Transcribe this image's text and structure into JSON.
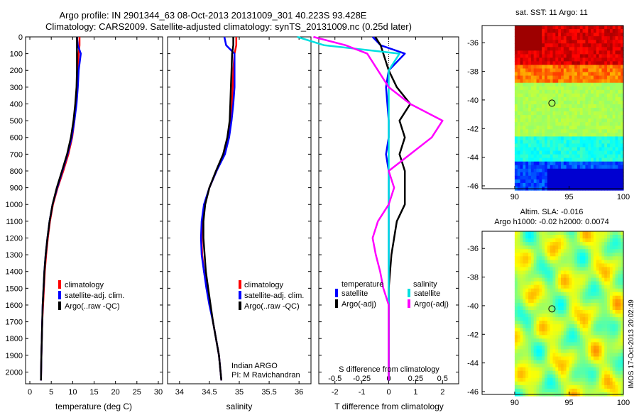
{
  "title_line1": "Argo profile: IN 2901344_63 08-Oct-2013 20131009_301 40.223S 93.428E",
  "title_line2": "Climatology: CARS2009. Satellite-adjusted climatology: synTS_20131009.nc (0.25d later)",
  "side_stamp": "IMOS 17-Oct-2013 20:02:49",
  "colors": {
    "climatology": "#ff0000",
    "satellite": "#0000ff",
    "argo": "#000000",
    "satellite_s": "#00e0e0",
    "argo_s": "#ff00ff"
  },
  "chart_data": [
    {
      "type": "line",
      "xlabel": "temperature (deg C)",
      "xlim": [
        -1,
        31
      ],
      "xticks": [
        0,
        5,
        10,
        15,
        20,
        25,
        30
      ],
      "ylim": [
        2070,
        0
      ],
      "yticks": [
        0,
        100,
        200,
        300,
        400,
        500,
        600,
        700,
        800,
        900,
        1000,
        1100,
        1200,
        1300,
        1400,
        1500,
        1600,
        1700,
        1800,
        1900,
        2000
      ],
      "legend": {
        "placement": "lower-left",
        "entries": [
          "climatology",
          "satellite-adj. clim.",
          "Argo(..raw -QC)"
        ]
      },
      "series": [
        {
          "name": "climatology",
          "color_key": "climatology",
          "x": [
            11.6,
            11.6,
            11.4,
            11.1,
            11.0,
            10.7,
            10.4,
            9.9,
            9.0,
            7.8,
            6.5,
            5.4,
            4.7,
            4.2,
            3.8,
            3.5,
            3.3,
            3.1,
            2.9,
            2.8,
            2.7,
            2.6
          ],
          "y": [
            0,
            50,
            100,
            200,
            300,
            400,
            500,
            600,
            700,
            800,
            900,
            1000,
            1100,
            1200,
            1300,
            1400,
            1500,
            1600,
            1700,
            1800,
            1900,
            2050
          ]
        },
        {
          "name": "satellite-adj. clim.",
          "color_key": "satellite",
          "x": [
            11.0,
            11.2,
            11.9,
            11.4,
            11.2,
            10.9,
            10.4,
            9.8,
            8.8,
            7.6,
            6.4,
            5.3,
            4.6,
            4.1,
            3.7,
            3.4,
            3.2,
            3.0,
            2.9,
            2.8,
            2.7,
            2.6
          ],
          "y": [
            0,
            50,
            100,
            200,
            300,
            400,
            500,
            600,
            700,
            800,
            900,
            1000,
            1100,
            1200,
            1300,
            1400,
            1500,
            1600,
            1700,
            1800,
            1900,
            2050
          ]
        },
        {
          "name": "Argo(..raw -QC)",
          "color_key": "argo",
          "x": [
            11.0,
            11.0,
            11.0,
            11.0,
            10.9,
            10.6,
            10.2,
            9.6,
            8.7,
            7.5,
            6.3,
            5.3,
            4.6,
            4.1,
            3.7,
            3.4,
            3.2,
            3.0,
            2.9,
            2.8,
            2.7,
            2.6
          ],
          "y": [
            0,
            50,
            100,
            200,
            300,
            400,
            500,
            600,
            700,
            800,
            900,
            1000,
            1100,
            1200,
            1300,
            1400,
            1500,
            1600,
            1700,
            1800,
            1900,
            2050
          ]
        }
      ]
    },
    {
      "type": "line",
      "xlabel": "salinity",
      "xlim": [
        33.8,
        36.2
      ],
      "xticks": [
        34,
        34.5,
        35,
        35.5,
        36
      ],
      "ylim": [
        2070,
        0
      ],
      "legend": {
        "placement": "lower-right",
        "entries": [
          "climatology",
          "satellite-adj. clim.",
          "Argo(..raw -QC)"
        ]
      },
      "annotation": [
        "Indian ARGO",
        "PI: M Ravichandran"
      ],
      "series": [
        {
          "name": "climatology",
          "color_key": "climatology",
          "x": [
            34.95,
            34.95,
            34.92,
            34.9,
            34.89,
            34.88,
            34.86,
            34.82,
            34.74,
            34.62,
            34.5,
            34.42,
            34.38,
            34.37,
            34.38,
            34.41,
            34.46,
            34.51,
            34.56,
            34.61,
            34.66,
            34.7
          ],
          "y": [
            0,
            50,
            100,
            200,
            300,
            400,
            500,
            600,
            700,
            800,
            900,
            1000,
            1100,
            1200,
            1300,
            1400,
            1500,
            1600,
            1700,
            1800,
            1900,
            2050
          ]
        },
        {
          "name": "satellite-adj. clim.",
          "color_key": "satellite",
          "x": [
            34.75,
            34.78,
            34.92,
            34.92,
            34.92,
            34.9,
            34.87,
            34.83,
            34.76,
            34.62,
            34.5,
            34.41,
            34.37,
            34.36,
            34.37,
            34.41,
            34.45,
            34.5,
            34.56,
            34.61,
            34.66,
            34.7
          ],
          "y": [
            0,
            50,
            100,
            200,
            300,
            400,
            500,
            600,
            700,
            800,
            900,
            1000,
            1100,
            1200,
            1300,
            1400,
            1500,
            1600,
            1700,
            1800,
            1900,
            2050
          ]
        },
        {
          "name": "Argo(..raw -QC)",
          "color_key": "argo",
          "x": [
            34.9,
            34.9,
            34.88,
            34.87,
            34.86,
            34.85,
            34.84,
            34.8,
            34.73,
            34.61,
            34.5,
            34.43,
            34.4,
            34.4,
            34.42,
            34.44,
            34.48,
            34.52,
            34.56,
            34.61,
            34.66,
            34.7
          ],
          "y": [
            0,
            50,
            100,
            200,
            300,
            400,
            500,
            600,
            700,
            800,
            900,
            1000,
            1100,
            1200,
            1300,
            1400,
            1500,
            1600,
            1700,
            1800,
            1900,
            2050
          ]
        }
      ]
    },
    {
      "type": "line",
      "xlabel": "T difference from climatology",
      "xlabel_top": "S difference from climatology",
      "xlim": [
        -2.6,
        2.6
      ],
      "xticks": [
        -2,
        -1,
        0,
        1,
        2
      ],
      "xticks_top": [
        -0.5,
        -0.25,
        0,
        0.25,
        0.5
      ],
      "ylim": [
        2070,
        0
      ],
      "legend_headers": [
        "temperature",
        "salinity"
      ],
      "legend": {
        "placement": "lower-center",
        "entries": [
          "satellite",
          "Argo(-adj)",
          "satellite",
          "Argo(-adj)"
        ]
      },
      "series": [
        {
          "name": "satellite",
          "group": "temperature",
          "color_key": "satellite",
          "x": [
            -0.6,
            -0.3,
            0.6,
            0.0,
            -0.1,
            -0.05,
            0.0,
            0.0,
            -0.1,
            0.0,
            0.0,
            0.0,
            0.0,
            0.0,
            0.0,
            0.0,
            0.0,
            0.0,
            0.0,
            0.0,
            0.0,
            0.0
          ],
          "y": [
            0,
            50,
            100,
            200,
            300,
            400,
            500,
            600,
            700,
            800,
            900,
            1000,
            1100,
            1200,
            1300,
            1400,
            1500,
            1600,
            1700,
            1800,
            1900,
            2050
          ]
        },
        {
          "name": "Argo(-adj)",
          "group": "temperature",
          "color_key": "argo",
          "x": [
            -0.5,
            -0.3,
            -0.2,
            0.0,
            0.3,
            0.8,
            0.4,
            0.6,
            0.4,
            0.6,
            0.6,
            0.6,
            0.3,
            0.2,
            0.1,
            0.05,
            0.0,
            0.0,
            0.0,
            0.0,
            0.0,
            0.0
          ],
          "y": [
            0,
            50,
            100,
            200,
            300,
            400,
            500,
            600,
            700,
            800,
            900,
            1000,
            1100,
            1200,
            1300,
            1400,
            1500,
            1600,
            1700,
            1800,
            1900,
            2050
          ]
        },
        {
          "name": "satellite",
          "group": "salinity",
          "color_key": "satellite_s",
          "x": [
            -0.85,
            -0.6,
            0.1,
            0.0,
            0.0,
            0.0,
            0.0,
            0.0,
            0.0,
            0.0,
            0.0,
            0.0,
            0.0,
            0.0,
            0.0,
            0.0,
            0.0,
            0.0,
            0.0,
            0.0,
            0.0,
            0.0
          ],
          "y": [
            0,
            50,
            100,
            200,
            300,
            400,
            500,
            600,
            700,
            800,
            900,
            1000,
            1100,
            1200,
            1300,
            1400,
            1500,
            1600,
            1700,
            1800,
            1900,
            2050
          ]
        },
        {
          "name": "Argo(-adj)",
          "group": "salinity",
          "color_key": "argo_s",
          "x": [
            -0.7,
            -0.4,
            -0.2,
            -0.1,
            0.0,
            0.2,
            0.5,
            0.4,
            0.2,
            0.0,
            0.05,
            0.0,
            -0.1,
            -0.15,
            -0.12,
            -0.08,
            -0.05,
            0.0,
            0.0,
            0.0,
            0.0,
            0.0
          ],
          "y": [
            0,
            50,
            100,
            200,
            300,
            400,
            500,
            600,
            700,
            800,
            900,
            1000,
            1100,
            1200,
            1300,
            1400,
            1500,
            1600,
            1700,
            1800,
            1900,
            2050
          ]
        }
      ]
    },
    {
      "type": "heatmap",
      "title": "sat. SST: 11  Argo: 11",
      "xlim": [
        87,
        100
      ],
      "xticks": [
        90,
        95,
        100
      ],
      "ylim": [
        -46.2,
        -34.8
      ],
      "yticks": [
        -36,
        -38,
        -40,
        -42,
        -44,
        -46
      ],
      "marker": {
        "lon": 93.43,
        "lat": -40.22
      }
    },
    {
      "type": "heatmap",
      "title_line1": "Altim. SLA: -0.016",
      "title_line2": "Argo h1000: -0.02  h2000: 0.0074",
      "xlim": [
        87,
        100
      ],
      "xticks": [
        90,
        95,
        100
      ],
      "ylim": [
        -46.2,
        -34.8
      ],
      "yticks": [
        -36,
        -38,
        -40,
        -42,
        -44,
        -46
      ],
      "marker": {
        "lon": 93.43,
        "lat": -40.22
      }
    }
  ]
}
